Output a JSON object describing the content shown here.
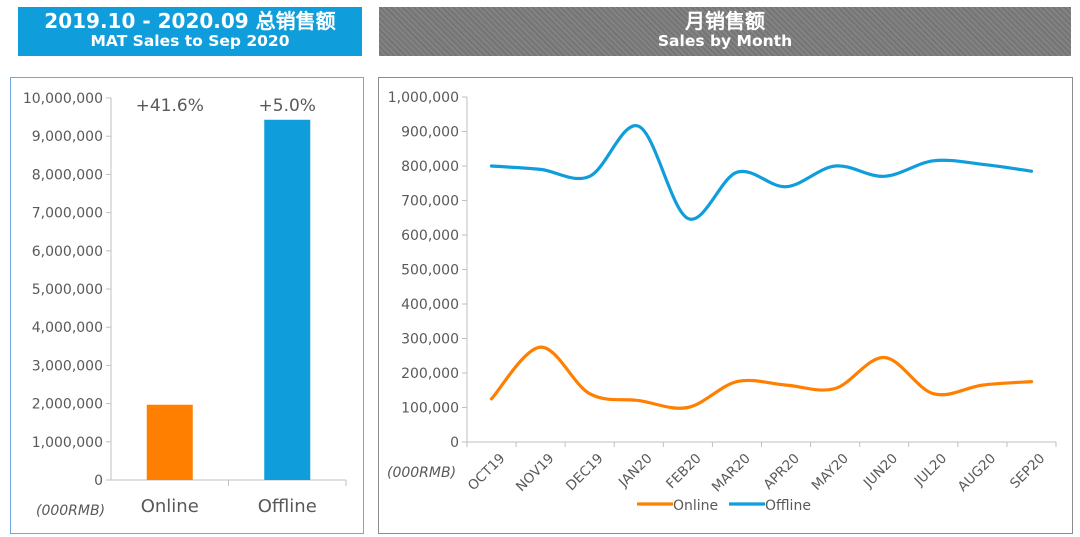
{
  "header_left": {
    "title": "2019.10 - 2020.09 总销售额",
    "subtitle": "MAT Sales to Sep 2020"
  },
  "header_right": {
    "title": "月销售额",
    "subtitle": "Sales by Month"
  },
  "colors": {
    "online": "#ff8000",
    "offline": "#0f9ddb",
    "header_left_bg": "#0f9ddb",
    "header_right_bg": "#7b7b7b",
    "axis": "#bfbfbf",
    "text": "#595959"
  },
  "chart_data": [
    {
      "type": "bar",
      "categories": [
        "Online",
        "Offline"
      ],
      "values": [
        1970000,
        9430000
      ],
      "data_labels": [
        "+41.6%",
        "+5.0%"
      ],
      "unit_label": "(000RMB)",
      "ylim": [
        0,
        10000000
      ],
      "yticks": [
        "0",
        "1,000,000",
        "2,000,000",
        "3,000,000",
        "4,000,000",
        "5,000,000",
        "6,000,000",
        "7,000,000",
        "8,000,000",
        "9,000,000",
        "10,000,000"
      ],
      "grid": false
    },
    {
      "type": "line",
      "categories": [
        "OCT19",
        "NOV19",
        "DEC19",
        "JAN20",
        "FEB20",
        "MAR20",
        "APR20",
        "MAY20",
        "JUN20",
        "JUL20",
        "AUG20",
        "SEP20"
      ],
      "series": [
        {
          "name": "Online",
          "values": [
            125000,
            275000,
            140000,
            120000,
            100000,
            175000,
            165000,
            155000,
            245000,
            140000,
            165000,
            175000
          ]
        },
        {
          "name": "Offline",
          "values": [
            800000,
            790000,
            770000,
            915000,
            648000,
            782000,
            740000,
            800000,
            770000,
            815000,
            805000,
            785000
          ]
        }
      ],
      "unit_label": "(000RMB)",
      "ylim": [
        0,
        1000000
      ],
      "yticks": [
        "0",
        "100,000",
        "200,000",
        "300,000",
        "400,000",
        "500,000",
        "600,000",
        "700,000",
        "800,000",
        "900,000",
        "1,000,000"
      ],
      "legend_position": "bottom",
      "smooth": true,
      "grid": false
    }
  ]
}
